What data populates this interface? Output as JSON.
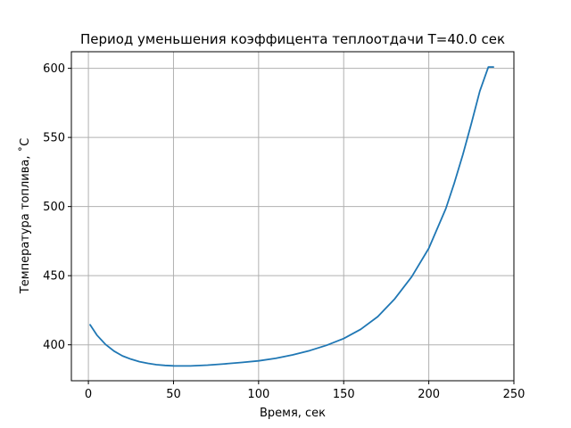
{
  "chart_data": {
    "type": "line",
    "title": "Период уменьшения коэффицента теплоотдачи T=40.0 сек",
    "xlabel": "Время, сек",
    "ylabel": "Температура топлива, ˚C",
    "xlim": [
      -10,
      250
    ],
    "ylim": [
      374,
      612
    ],
    "xticks": [
      0,
      50,
      100,
      150,
      200,
      250
    ],
    "yticks": [
      400,
      450,
      500,
      550,
      600
    ],
    "grid": true,
    "series": [
      {
        "color": "#1f77b4",
        "x": [
          1,
          5,
          10,
          15,
          20,
          25,
          30,
          35,
          40,
          45,
          50,
          55,
          60,
          70,
          80,
          90,
          100,
          110,
          120,
          130,
          140,
          150,
          160,
          170,
          180,
          190,
          200,
          210,
          215,
          220,
          225,
          230,
          235,
          238
        ],
        "y": [
          414.5,
          407,
          400.3,
          395.5,
          392,
          389.6,
          387.8,
          386.6,
          385.6,
          385.1,
          384.8,
          384.7,
          384.7,
          385.3,
          386.2,
          387.2,
          388.4,
          390.2,
          392.7,
          395.8,
          399.7,
          404.5,
          411.2,
          420.4,
          433.3,
          449.3,
          469.8,
          498.5,
          517,
          537.6,
          560,
          583.5,
          601,
          601
        ]
      }
    ]
  }
}
